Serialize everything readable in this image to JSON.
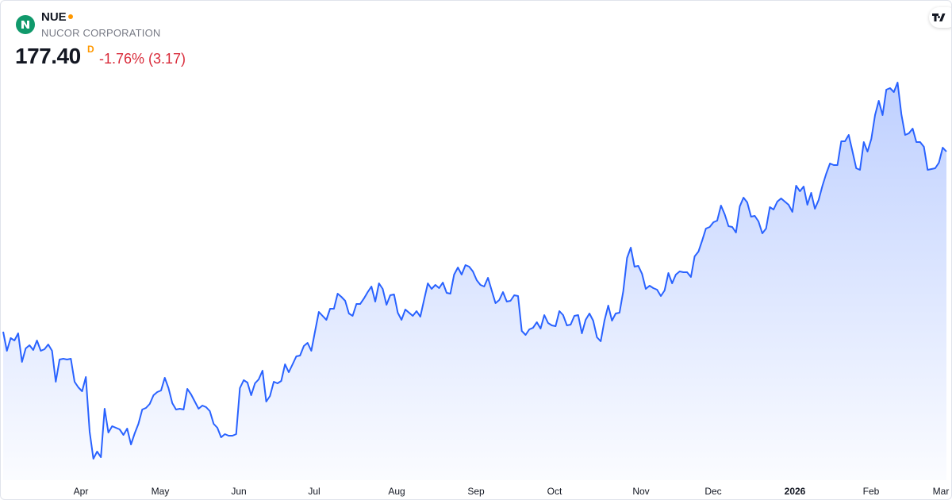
{
  "header": {
    "symbol": "NUE",
    "company": "NUCOR CORPORATION",
    "price": "177.40",
    "interval": "D",
    "change": "-1.76% (3.17)",
    "logo_letter": "N",
    "market_status_icon": "dot-icon"
  },
  "branding": {
    "logo": "tradingview-logo"
  },
  "colors": {
    "line": "#2962ff",
    "negative": "#d92b3a",
    "status": "#ff9800",
    "logo_bg": "#10996b"
  },
  "chart_data": {
    "type": "area",
    "x_tick_labels": [
      "Apr",
      "May",
      "Jun",
      "Jul",
      "Aug",
      "Sep",
      "Oct",
      "Nov",
      "Dec",
      "2026",
      "Feb",
      "Mar"
    ],
    "grid": false,
    "values": [
      132.0,
      127.2,
      130.4,
      129.8,
      131.6,
      124.4,
      127.8,
      128.6,
      127.4,
      129.8,
      127.2,
      127.6,
      128.8,
      127.2,
      119.4,
      125.0,
      125.2,
      125.0,
      125.2,
      119.4,
      118.0,
      117.0,
      120.6,
      106.8,
      100.0,
      101.8,
      100.4,
      112.6,
      106.6,
      108.2,
      107.8,
      107.4,
      106.0,
      107.6,
      103.6,
      106.4,
      108.8,
      112.4,
      112.8,
      113.8,
      116.0,
      116.8,
      117.2,
      120.4,
      117.8,
      114.0,
      112.4,
      112.6,
      112.4,
      117.6,
      116.2,
      114.4,
      112.6,
      113.4,
      113.0,
      112.0,
      108.8,
      107.8,
      105.4,
      106.2,
      105.8,
      105.8,
      106.2,
      117.8,
      119.8,
      119.2,
      116.0,
      119.0,
      120.0,
      122.2,
      114.4,
      115.8,
      119.4,
      119.0,
      119.6,
      123.8,
      121.8,
      123.8,
      125.8,
      126.0,
      128.4,
      129.2,
      127.2,
      132.2,
      137.0,
      136.0,
      135.0,
      137.8,
      137.8,
      141.6,
      140.8,
      139.8,
      136.6,
      136.0,
      139.0,
      139.0,
      140.4,
      142.0,
      143.4,
      139.6,
      144.2,
      142.8,
      138.8,
      141.2,
      141.4,
      136.8,
      135.0,
      137.6,
      136.8,
      136.0,
      137.2,
      135.8,
      140.0,
      144.2,
      142.8,
      143.8,
      143.0,
      144.4,
      141.8,
      141.6,
      146.4,
      148.2,
      146.4,
      148.8,
      148.4,
      147.2,
      145.0,
      143.8,
      143.4,
      145.6,
      142.4,
      139.2,
      140.0,
      142.0,
      139.6,
      139.8,
      141.2,
      141.0,
      132.2,
      131.2,
      132.6,
      133.0,
      134.4,
      132.8,
      136.2,
      134.2,
      133.6,
      133.4,
      137.2,
      136.2,
      133.6,
      133.8,
      136.0,
      136.2,
      131.6,
      135.0,
      136.6,
      134.8,
      130.6,
      129.6,
      134.8,
      138.6,
      134.8,
      136.6,
      136.8,
      142.2,
      150.6,
      153.2,
      148.4,
      148.6,
      146.6,
      142.8,
      143.6,
      143.0,
      142.6,
      141.0,
      142.4,
      146.8,
      144.2,
      146.4,
      147.2,
      147.0,
      147.0,
      145.8,
      151.0,
      152.2,
      155.0,
      158.0,
      158.4,
      159.6,
      160.0,
      163.8,
      161.6,
      158.6,
      158.4,
      157.0,
      163.6,
      165.8,
      164.6,
      161.0,
      161.2,
      159.8,
      156.8,
      158.0,
      163.4,
      162.8,
      164.8,
      165.6,
      164.8,
      164.0,
      162.2,
      168.8,
      167.4,
      168.6,
      164.0,
      167.0,
      163.0,
      165.2,
      168.8,
      171.8,
      174.4,
      174.0,
      174.0,
      180.0,
      180.0,
      181.6,
      177.4,
      173.2,
      172.8,
      179.8,
      177.4,
      180.6,
      186.6,
      190.2,
      186.6,
      193.0,
      193.4,
      192.4,
      194.8,
      186.8,
      181.6,
      182.0,
      183.2,
      179.8,
      179.8,
      178.6,
      172.8,
      173.0,
      173.2,
      174.6,
      178.4,
      177.4
    ]
  }
}
